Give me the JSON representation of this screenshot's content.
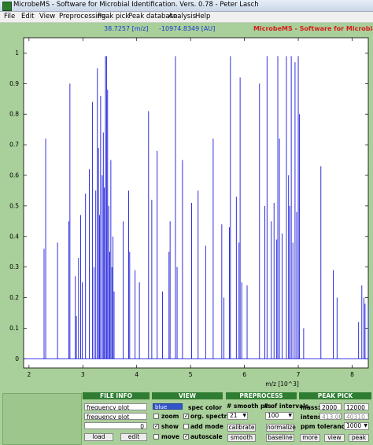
{
  "window": {
    "title": "MicrobeMS - Software for Microbial Identification. Vers. 0.78 - Peter Lasch"
  },
  "menu": [
    "File",
    "Edit",
    "View",
    "Preprocessing",
    "Peak pick",
    "Peak database",
    "Analysis",
    "Help"
  ],
  "readout": {
    "mz": "38.7257 [m/z]",
    "au": "-10974.8349 [AU]"
  },
  "app_title": "MicrobeMS  - Software for Microbial Identification",
  "chart_data": {
    "type": "bar",
    "xlabel": "m/z [10^3]",
    "ylabel": "",
    "xlim": [
      1.9,
      8.3
    ],
    "ylim": [
      -0.03,
      1.05
    ],
    "xticks": [
      "2",
      "3",
      "4",
      "5",
      "6",
      "7",
      "8"
    ],
    "yticks": [
      "0",
      "0.1",
      "0.2",
      "0.3",
      "0.4",
      "0.5",
      "0.6",
      "0.7",
      "0.8",
      "0.9",
      "1"
    ],
    "line_color": "#1a1adb",
    "peaks": [
      [
        2.28,
        0.36
      ],
      [
        2.31,
        0.72
      ],
      [
        2.53,
        0.38
      ],
      [
        2.74,
        0.45
      ],
      [
        2.76,
        0.9
      ],
      [
        2.86,
        0.27
      ],
      [
        2.88,
        0.14
      ],
      [
        2.92,
        0.33
      ],
      [
        2.96,
        0.47
      ],
      [
        2.99,
        0.25
      ],
      [
        3.05,
        0.54
      ],
      [
        3.12,
        0.62
      ],
      [
        3.18,
        0.84
      ],
      [
        3.21,
        0.3
      ],
      [
        3.24,
        0.55
      ],
      [
        3.27,
        0.95
      ],
      [
        3.29,
        0.69
      ],
      [
        3.31,
        0.47
      ],
      [
        3.33,
        0.86
      ],
      [
        3.36,
        0.6
      ],
      [
        3.38,
        0.74
      ],
      [
        3.4,
        0.56
      ],
      [
        3.42,
        0.99
      ],
      [
        3.44,
        0.99
      ],
      [
        3.46,
        0.88
      ],
      [
        3.48,
        0.5
      ],
      [
        3.5,
        0.35
      ],
      [
        3.52,
        0.65
      ],
      [
        3.54,
        0.3
      ],
      [
        3.56,
        0.4
      ],
      [
        3.58,
        0.22
      ],
      [
        3.75,
        0.45
      ],
      [
        3.85,
        0.55
      ],
      [
        3.87,
        0.35
      ],
      [
        3.97,
        0.29
      ],
      [
        4.05,
        0.25
      ],
      [
        4.22,
        0.81
      ],
      [
        4.28,
        0.52
      ],
      [
        4.38,
        0.68
      ],
      [
        4.48,
        0.22
      ],
      [
        4.6,
        0.35
      ],
      [
        4.62,
        0.45
      ],
      [
        4.72,
        0.99
      ],
      [
        4.75,
        0.3
      ],
      [
        4.85,
        0.65
      ],
      [
        5.02,
        0.51
      ],
      [
        5.14,
        0.55
      ],
      [
        5.28,
        0.37
      ],
      [
        5.42,
        0.72
      ],
      [
        5.58,
        0.44
      ],
      [
        5.62,
        0.2
      ],
      [
        5.72,
        0.43
      ],
      [
        5.74,
        0.99
      ],
      [
        5.85,
        0.53
      ],
      [
        5.9,
        0.38
      ],
      [
        5.92,
        0.92
      ],
      [
        5.95,
        0.25
      ],
      [
        6.05,
        0.24
      ],
      [
        6.28,
        0.9
      ],
      [
        6.38,
        0.5
      ],
      [
        6.42,
        0.99
      ],
      [
        6.5,
        0.45
      ],
      [
        6.55,
        0.51
      ],
      [
        6.6,
        0.39
      ],
      [
        6.62,
        0.99
      ],
      [
        6.65,
        0.72
      ],
      [
        6.7,
        0.41
      ],
      [
        6.78,
        0.99
      ],
      [
        6.82,
        0.6
      ],
      [
        6.84,
        0.5
      ],
      [
        6.87,
        0.99
      ],
      [
        6.9,
        0.38
      ],
      [
        6.94,
        0.97
      ],
      [
        6.97,
        0.48
      ],
      [
        7.0,
        0.99
      ],
      [
        7.02,
        0.8
      ],
      [
        7.1,
        0.1
      ],
      [
        7.42,
        0.63
      ],
      [
        7.65,
        0.29
      ],
      [
        7.72,
        0.2
      ],
      [
        8.12,
        0.12
      ],
      [
        8.18,
        0.24
      ],
      [
        8.22,
        0.2
      ],
      [
        8.24,
        0.18
      ],
      [
        8.3,
        0.17
      ]
    ]
  },
  "panel": {
    "file_info": {
      "header": "FILE INFO",
      "field1": "frequency plot",
      "field2": "frequency plot",
      "field3_number": "0",
      "load": "load",
      "edit": "edit"
    },
    "view": {
      "header": "VIEW",
      "color_select": "blue",
      "spec_color": "spec color",
      "zoom": "zoom",
      "zoom_checked": false,
      "org_spectra": "org. spectra",
      "org_checked": true,
      "show": "show",
      "show_checked": true,
      "add_mode": "add mode",
      "add_checked": false,
      "move": "move",
      "move_checked": false,
      "autoscale": "autoscale",
      "autoscale_checked": true
    },
    "preprocess": {
      "header": "PREPROCESS",
      "smooth_label": "# smooth pts",
      "intervals_label": "# of intervals",
      "smooth_value": "21",
      "intervals_value": "100",
      "calibrate": "calibrate",
      "normalize": "normalize",
      "smooth": "smooth",
      "baseline": "baseline"
    },
    "peak_pick": {
      "header": "PEAK PICK",
      "mass_label": "mass:",
      "mass_from": "2000",
      "mass_to": "12000",
      "intens_label": "intens:",
      "intens_from": "413.0055",
      "intens_to": "40310.55",
      "ppm_label": "ppm tolerance:",
      "ppm_value": "1000",
      "more": "more",
      "view": "view",
      "peak": "peak"
    }
  }
}
